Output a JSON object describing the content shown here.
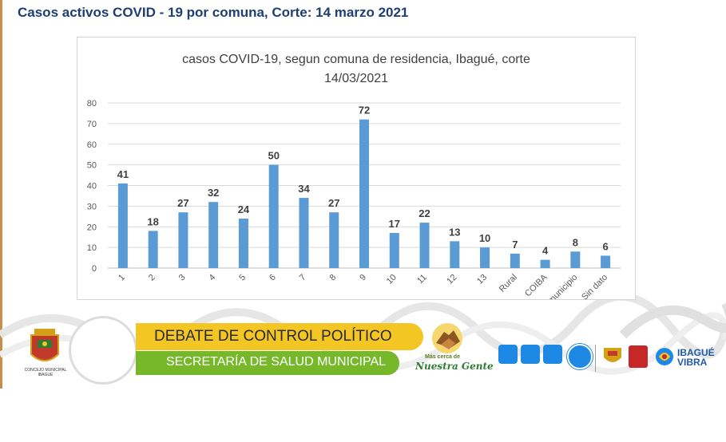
{
  "page": {
    "title": "Casos activos COVID - 19 por comuna, Corte: 14 marzo 2021"
  },
  "chart_data": {
    "type": "bar",
    "title_line1": "casos COVID-19, segun comuna de residencia, Ibagué, corte",
    "title_line2": "14/03/2021",
    "categories": [
      "1",
      "2",
      "3",
      "4",
      "5",
      "6",
      "7",
      "8",
      "9",
      "10",
      "11",
      "12",
      "13",
      "Rural",
      "COIBA",
      "otro municipio",
      "Sin dato"
    ],
    "values": [
      41,
      18,
      27,
      32,
      24,
      50,
      34,
      27,
      72,
      17,
      22,
      13,
      10,
      7,
      4,
      8,
      6
    ],
    "ylim": [
      0,
      80
    ],
    "yticks": [
      0,
      10,
      20,
      30,
      40,
      50,
      60,
      70,
      80
    ],
    "grid": true,
    "bar_color": "#5b9bd5",
    "legend": "none"
  },
  "banner": {
    "line1": "DEBATE DE CONTROL POLÍTICO",
    "line2": "SECRETARÍA DE SALUD MUNICIPAL",
    "slogan_small": "Más cerca de",
    "slogan_big": "Nuestra Gente"
  },
  "logos": {
    "left_caption": "CONCEJO MUNICIPAL IBAGUÉ",
    "right_brand_line1": "IBAGUÉ",
    "right_brand_line2": "VIBRA"
  },
  "colors": {
    "title": "#1f3f73",
    "banner_yellow": "#f3c623",
    "banner_green": "#76b82a"
  }
}
